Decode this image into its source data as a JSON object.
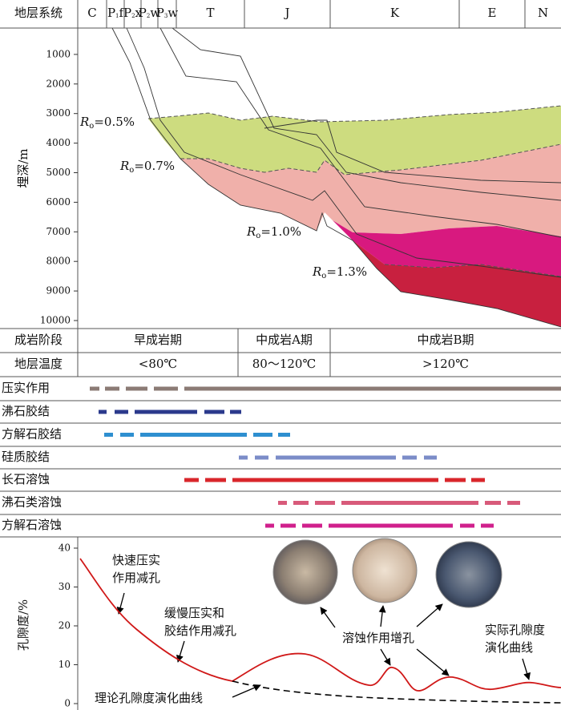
{
  "header": {
    "label": "地层系统",
    "strata": [
      {
        "main": "C"
      },
      {
        "main": "P",
        "sub": "1",
        "suffix": "f"
      },
      {
        "main": "P",
        "sub": "2",
        "suffix": "x"
      },
      {
        "main": "P",
        "sub": "2",
        "suffix": "w"
      },
      {
        "main": "P",
        "sub": "3",
        "suffix": "w"
      },
      {
        "main": "T"
      },
      {
        "main": "J"
      },
      {
        "main": "K"
      },
      {
        "main": "E"
      },
      {
        "main": "N"
      }
    ]
  },
  "burial": {
    "axis_label": "埋深/m",
    "ticks": [
      1000,
      2000,
      3000,
      4000,
      5000,
      6000,
      7000,
      8000,
      9000,
      10000
    ],
    "ro_labels": [
      {
        "symbol": "R",
        "sub": "o",
        "text": "=0.5%"
      },
      {
        "symbol": "R",
        "sub": "o",
        "text": "=0.7%"
      },
      {
        "symbol": "R",
        "sub": "o",
        "text": "=1.0%"
      },
      {
        "symbol": "R",
        "sub": "o",
        "text": "=1.3%"
      }
    ]
  },
  "stages": {
    "label": "成岩阶段",
    "items": [
      "早成岩期",
      "中成岩A期",
      "中成岩B期"
    ]
  },
  "temperature": {
    "label": "地层温度",
    "items": [
      "<80℃",
      "80～120℃",
      ">120℃"
    ]
  },
  "processes": [
    "压实作用",
    "沸石胶结",
    "方解石胶结",
    "硅质胶结",
    "长石溶蚀",
    "沸石类溶蚀",
    "方解石溶蚀"
  ],
  "porosity": {
    "axis_label": "孔隙度/%",
    "ticks": [
      0,
      10,
      20,
      30,
      40
    ],
    "annotations": [
      [
        "快速压实",
        "作用减孔"
      ],
      [
        "缓慢压实和",
        "胶结作用减孔"
      ],
      [
        "溶蚀作用增孔"
      ],
      [
        "实际孔隙度",
        "演化曲线"
      ],
      [
        "理论孔隙度演化曲线"
      ]
    ]
  }
}
